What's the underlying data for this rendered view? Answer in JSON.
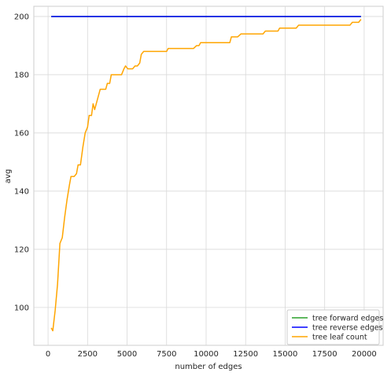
{
  "chart_data": {
    "type": "line",
    "xlabel": "number of edges",
    "ylabel": "avg",
    "xlim": [
      -900,
      21200
    ],
    "ylim": [
      87,
      203.5
    ],
    "xticks": [
      0,
      2500,
      5000,
      7500,
      10000,
      12500,
      15000,
      17500,
      20000
    ],
    "yticks": [
      100,
      120,
      140,
      160,
      180,
      200
    ],
    "grid": true,
    "legend_position": "bottom-right",
    "series": [
      {
        "name": "tree forward edges",
        "color": "#2ca02c",
        "points": [
          [
            200,
            200
          ],
          [
            19800,
            200
          ]
        ]
      },
      {
        "name": "tree reverse edges",
        "color": "#0000ff",
        "points": [
          [
            200,
            200
          ],
          [
            19800,
            200
          ]
        ]
      },
      {
        "name": "tree leaf count",
        "color": "#ffa500",
        "points": [
          [
            200,
            93
          ],
          [
            300,
            92
          ],
          [
            450,
            99
          ],
          [
            600,
            108
          ],
          [
            750,
            122
          ],
          [
            900,
            124
          ],
          [
            1050,
            131
          ],
          [
            1200,
            137
          ],
          [
            1350,
            142
          ],
          [
            1450,
            145
          ],
          [
            1650,
            145
          ],
          [
            1800,
            146
          ],
          [
            1900,
            149
          ],
          [
            2050,
            149
          ],
          [
            2200,
            155
          ],
          [
            2350,
            160
          ],
          [
            2500,
            162
          ],
          [
            2600,
            166
          ],
          [
            2750,
            166
          ],
          [
            2850,
            170
          ],
          [
            2950,
            168
          ],
          [
            3100,
            171
          ],
          [
            3300,
            175
          ],
          [
            3650,
            175
          ],
          [
            3750,
            177
          ],
          [
            3900,
            177
          ],
          [
            4000,
            180
          ],
          [
            4650,
            180
          ],
          [
            4800,
            182
          ],
          [
            4900,
            183
          ],
          [
            5050,
            182
          ],
          [
            5350,
            182
          ],
          [
            5500,
            183
          ],
          [
            5650,
            183
          ],
          [
            5800,
            184
          ],
          [
            5900,
            187
          ],
          [
            6050,
            188
          ],
          [
            7500,
            188
          ],
          [
            7600,
            189
          ],
          [
            9200,
            189
          ],
          [
            9400,
            190
          ],
          [
            9550,
            190
          ],
          [
            9650,
            191
          ],
          [
            11500,
            191
          ],
          [
            11600,
            193
          ],
          [
            12000,
            193
          ],
          [
            12200,
            194
          ],
          [
            13600,
            194
          ],
          [
            13750,
            195
          ],
          [
            14550,
            195
          ],
          [
            14650,
            196
          ],
          [
            15700,
            196
          ],
          [
            15850,
            197
          ],
          [
            19100,
            197
          ],
          [
            19250,
            198
          ],
          [
            19650,
            198
          ],
          [
            19800,
            199
          ]
        ]
      }
    ]
  }
}
